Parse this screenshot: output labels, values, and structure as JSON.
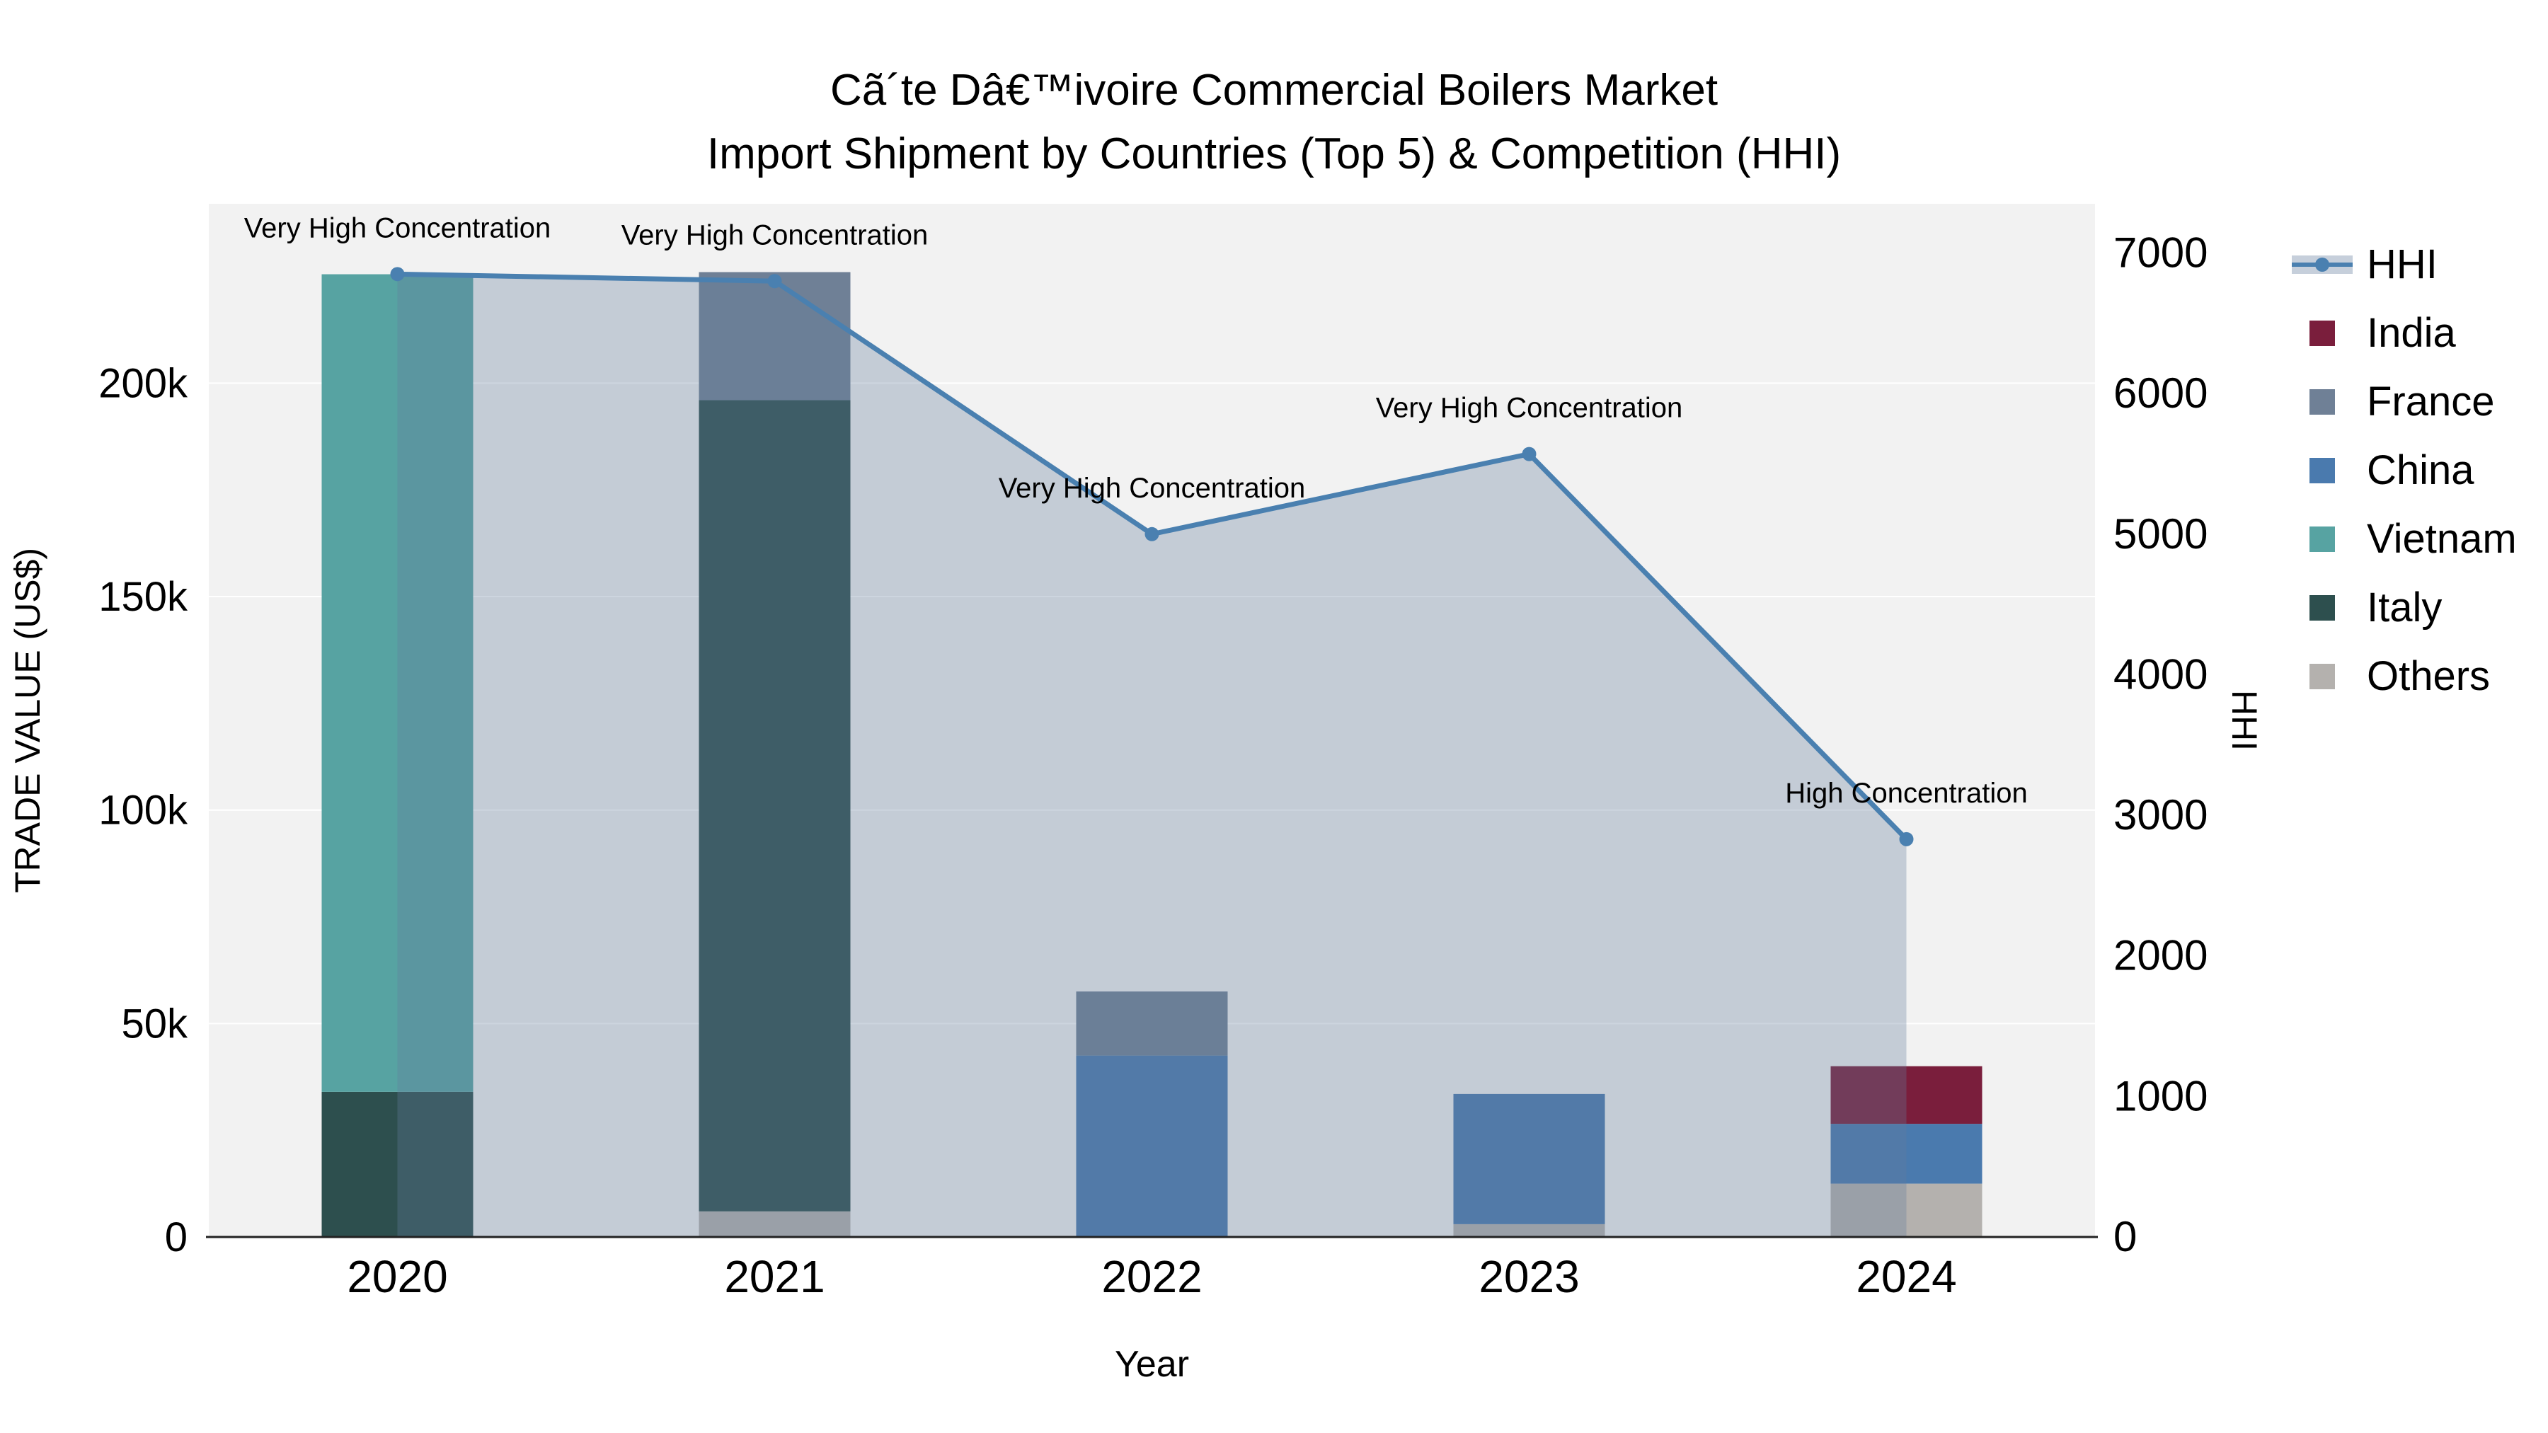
{
  "chart_data": {
    "type": "bar",
    "combo": "stacked bars on left axis + HHI line with area fill on right axis",
    "title_line1": "Cã´te Dâ€™ivoire Commercial Boilers Market",
    "title_line2": "Import Shipment by Countries (Top 5) & Competition (HHI)",
    "xlabel": "Year",
    "ylabel_left": "TRADE VALUE (US$)",
    "ylabel_right": "HHI",
    "categories": [
      "2020",
      "2021",
      "2022",
      "2023",
      "2024"
    ],
    "bar_stack_order": [
      "Others",
      "Italy",
      "Vietnam",
      "China",
      "France",
      "India"
    ],
    "bar_series": [
      {
        "name": "Others",
        "color": "#b4b1ae",
        "values": [
          0,
          6000,
          0,
          3000,
          12500
        ]
      },
      {
        "name": "Italy",
        "color": "#2d4f4e",
        "values": [
          34000,
          190000,
          0,
          0,
          0
        ]
      },
      {
        "name": "Vietnam",
        "color": "#57a3a2",
        "values": [
          191500,
          0,
          0,
          0,
          0
        ]
      },
      {
        "name": "China",
        "color": "#4a7aae",
        "values": [
          0,
          0,
          42500,
          30500,
          14000
        ]
      },
      {
        "name": "France",
        "color": "#6f8096",
        "values": [
          0,
          30000,
          15000,
          0,
          0
        ]
      },
      {
        "name": "India",
        "color": "#7a1e3c",
        "values": [
          0,
          0,
          0,
          0,
          13500
        ]
      }
    ],
    "line_series": {
      "name": "HHI",
      "color": "#4a80b0",
      "area_fill": "rgba(100,125,155,0.32)",
      "values": [
        6850,
        6800,
        5000,
        5570,
        2830
      ]
    },
    "annotations": [
      {
        "x": "2020",
        "text": "Very High Concentration"
      },
      {
        "x": "2021",
        "text": "Very High Concentration"
      },
      {
        "x": "2022",
        "text": "Very High Concentration"
      },
      {
        "x": "2023",
        "text": "Very High Concentration"
      },
      {
        "x": "2024",
        "text": "High Concentration"
      }
    ],
    "left_axis": {
      "max": 242000,
      "ticks": [
        {
          "v": 0,
          "label": "0"
        },
        {
          "v": 50000,
          "label": "50k"
        },
        {
          "v": 100000,
          "label": "100k"
        },
        {
          "v": 150000,
          "label": "150k"
        },
        {
          "v": 200000,
          "label": "200k"
        }
      ]
    },
    "right_axis": {
      "max": 7350,
      "ticks": [
        {
          "v": 0,
          "label": "0"
        },
        {
          "v": 1000,
          "label": "1000"
        },
        {
          "v": 2000,
          "label": "2000"
        },
        {
          "v": 3000,
          "label": "3000"
        },
        {
          "v": 4000,
          "label": "4000"
        },
        {
          "v": 5000,
          "label": "5000"
        },
        {
          "v": 6000,
          "label": "6000"
        },
        {
          "v": 7000,
          "label": "7000"
        }
      ]
    },
    "legend": [
      {
        "label": "HHI",
        "type": "line",
        "color": "#4a80b0",
        "band": "#c6cfdb"
      },
      {
        "label": "India",
        "type": "swatch",
        "color": "#7a1e3c"
      },
      {
        "label": "France",
        "type": "swatch",
        "color": "#6f8096"
      },
      {
        "label": "China",
        "type": "swatch",
        "color": "#4a7aae"
      },
      {
        "label": "Vietnam",
        "type": "swatch",
        "color": "#57a3a2"
      },
      {
        "label": "Italy",
        "type": "swatch",
        "color": "#2d4f4e"
      },
      {
        "label": "Others",
        "type": "swatch",
        "color": "#b4b1ae"
      }
    ],
    "plot_bg": "#f2f2f2",
    "grid_color": "#ffffff"
  }
}
